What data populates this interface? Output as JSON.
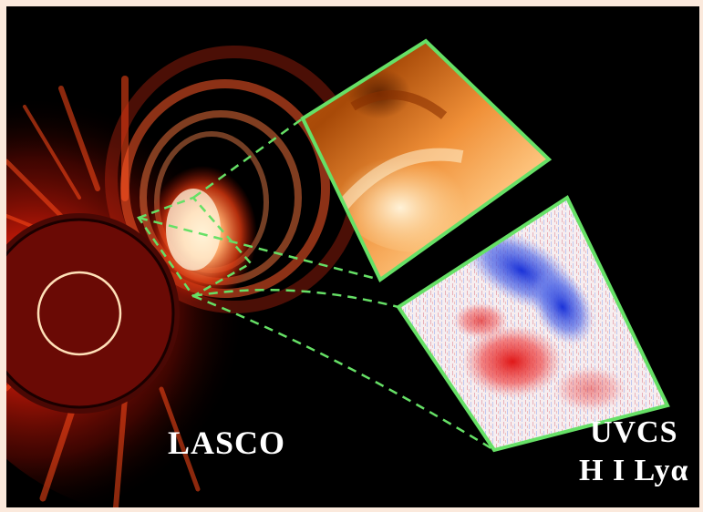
{
  "labels": {
    "lasco": "LASCO",
    "uvcs_line1": "UVCS",
    "uvcs_line2": "H I Lyα"
  },
  "colors": {
    "background": "#000000",
    "frame_border": "#fbe9dc",
    "panel_border": "#66e066",
    "connector": "#66e066",
    "occulter": "#6a0a05",
    "sun_circle": "#ffe0b8",
    "label_text": "#ffffff"
  },
  "panels": [
    {
      "name": "LASCO zoom inset",
      "colormap": "orange"
    },
    {
      "name": "UVCS H I Lyα inset",
      "colormap": "red-white-blue"
    }
  ]
}
